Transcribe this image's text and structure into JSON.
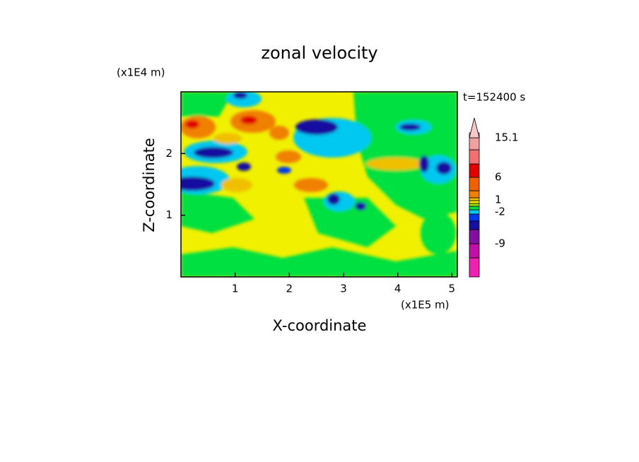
{
  "chart_data": {
    "type": "contour",
    "title": "zonal velocity",
    "x_label": "X-coordinate",
    "y_label": "Z-coordinate",
    "x_unit": "(x1E5 m)",
    "y_unit": "(x1E4 m)",
    "time_label": "t=152400 s",
    "xlim": [
      0,
      5.1
    ],
    "xticks": [
      1,
      2,
      3,
      4,
      5
    ],
    "ylim": [
      0,
      3
    ],
    "yticks": [
      1,
      2
    ],
    "colorbar": {
      "colors": [
        "#f020b0",
        "#c010a8",
        "#8010a0",
        "#1810a0",
        "#0038f0",
        "#00c8f0",
        "#00e040",
        "#a0e000",
        "#f0f000",
        "#f0c000",
        "#f08000",
        "#f06000",
        "#e00000",
        "#f07070",
        "#f0a0a0",
        "#f8c8c8"
      ],
      "ticks": [
        15.1,
        6,
        1,
        -2,
        -9
      ]
    }
  }
}
